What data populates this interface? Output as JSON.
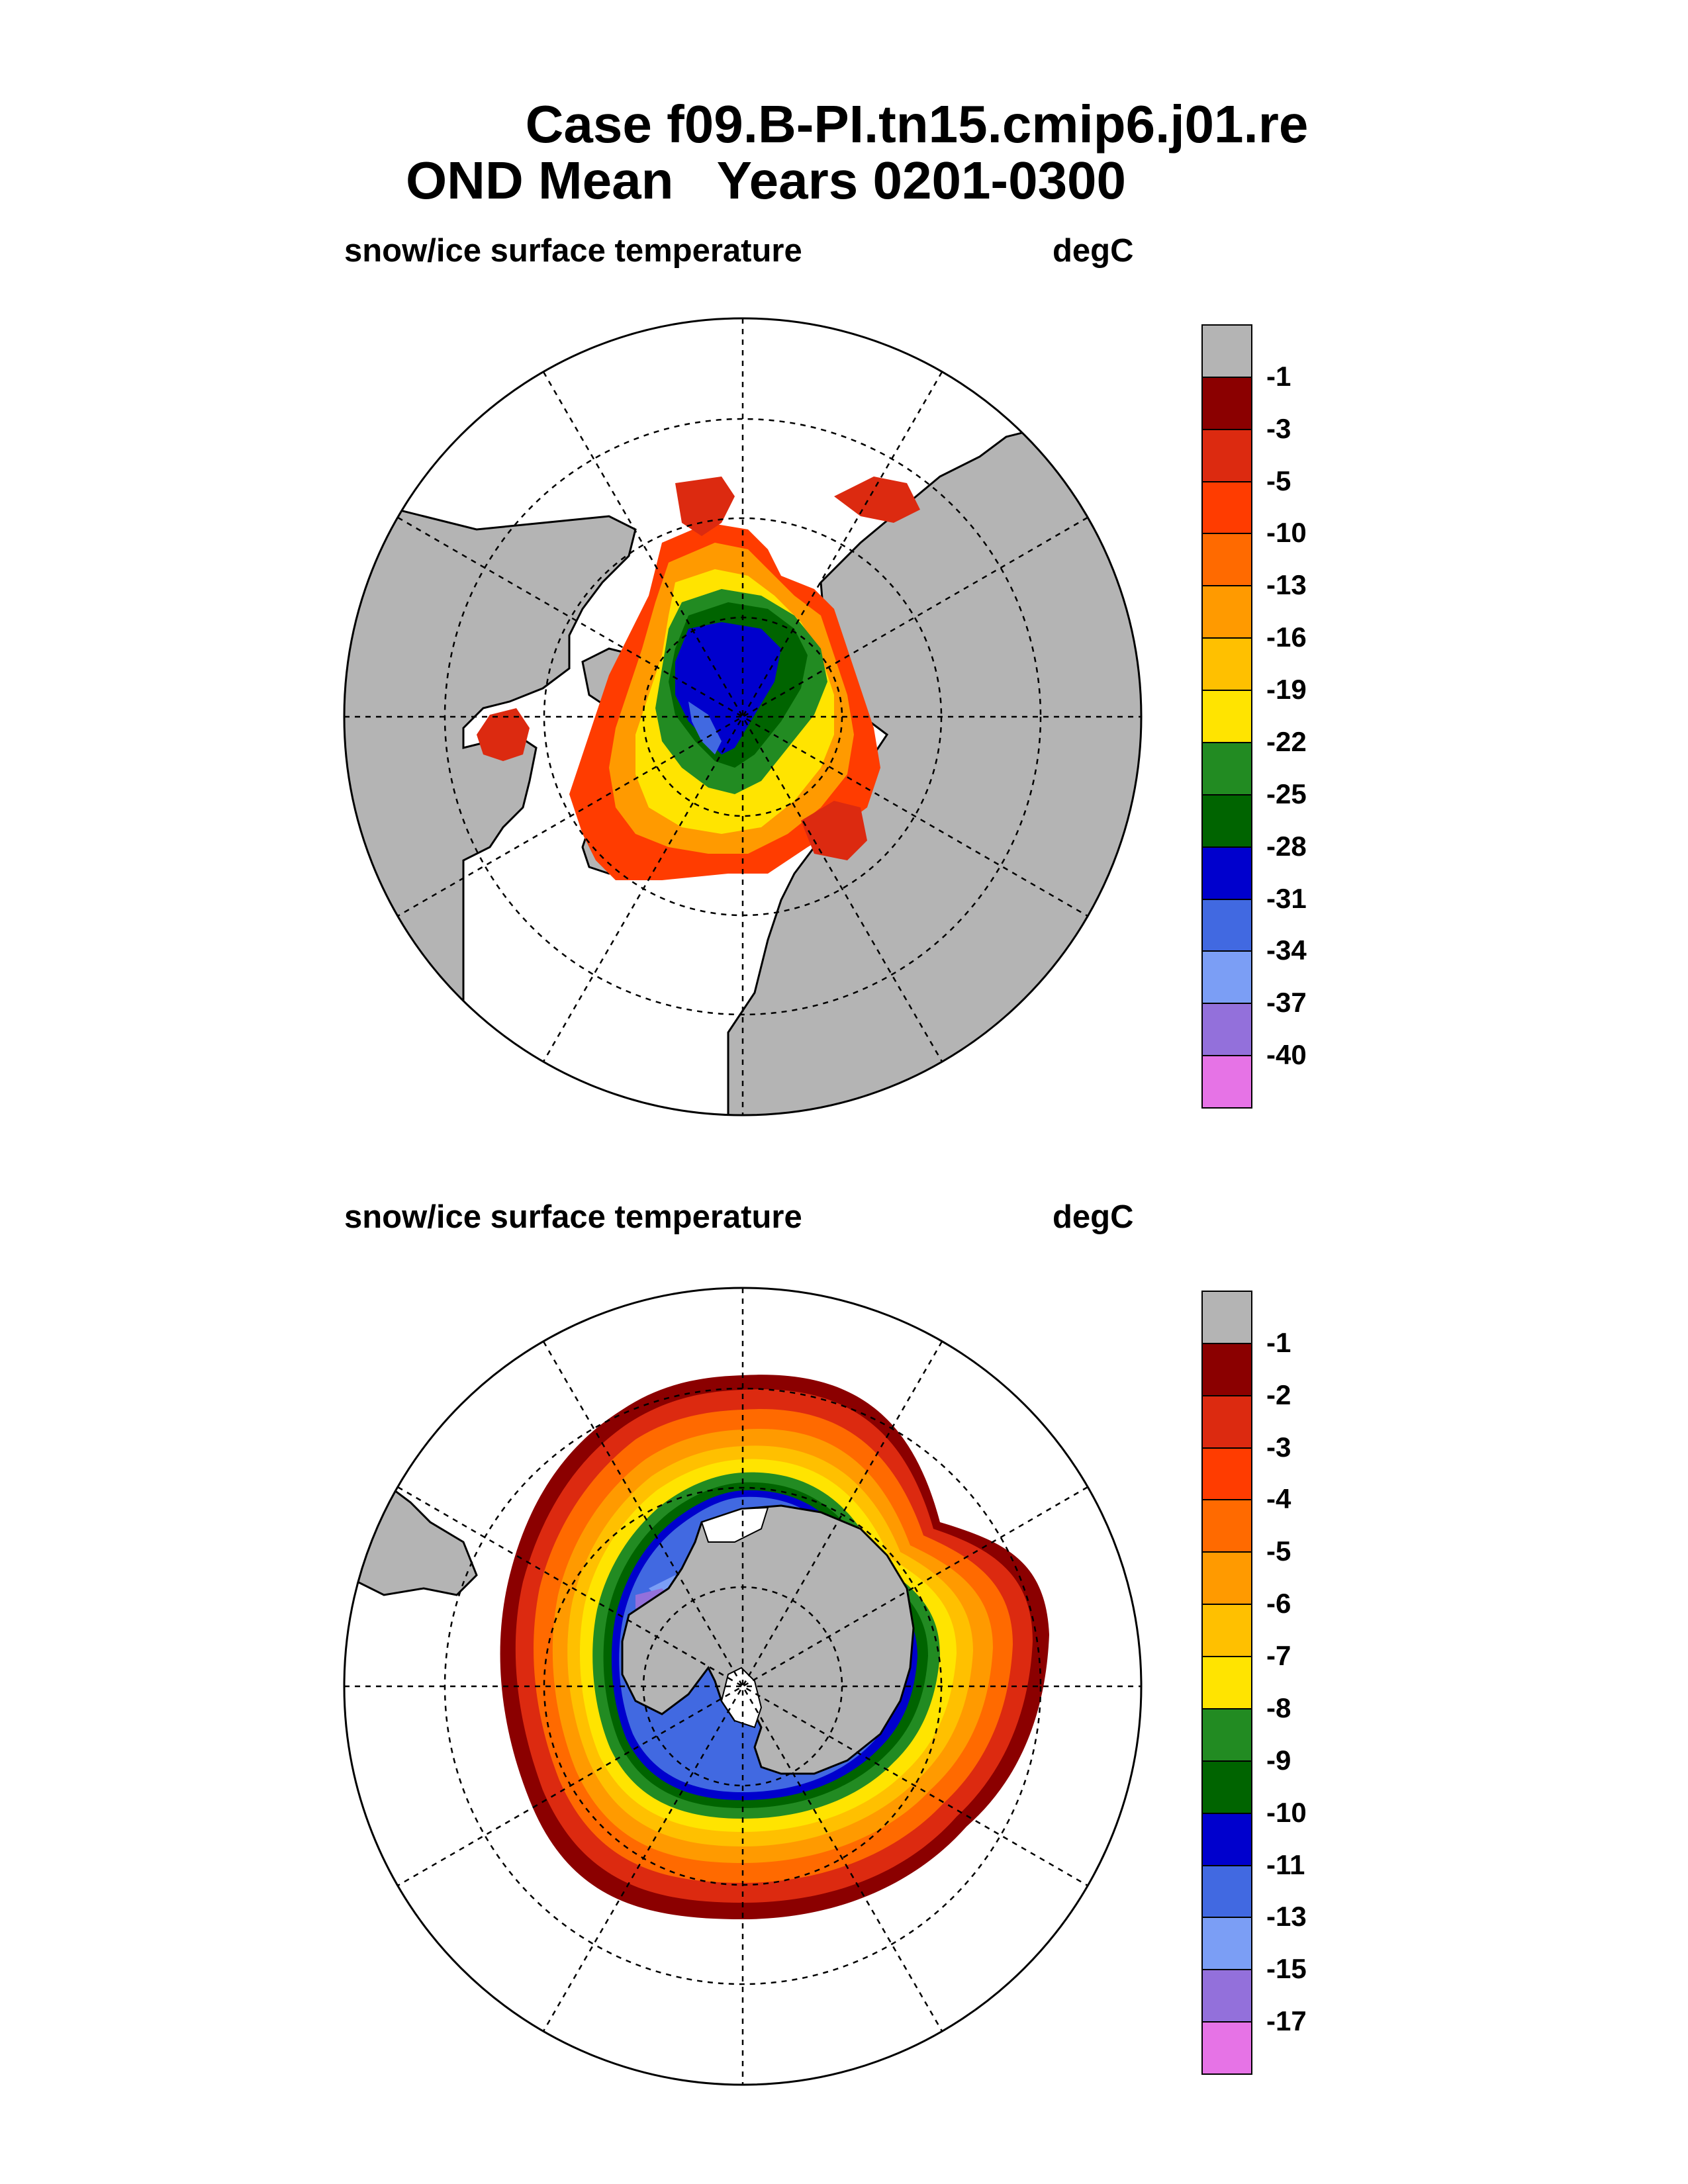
{
  "title": {
    "line1": "Case f09.B-PI.tn15.cmip6.j01.re",
    "line2": "OND Mean   Years 0201-0300"
  },
  "panels": [
    {
      "hemisphere": "north",
      "variable_label": "snow/ice surface temperature",
      "units_label": "degC",
      "colorbar": {
        "labels": [
          "-1",
          "-3",
          "-5",
          "-10",
          "-13",
          "-16",
          "-19",
          "-22",
          "-25",
          "-28",
          "-31",
          "-34",
          "-37",
          "-40"
        ],
        "colors": [
          "#b4b4b4",
          "#8b0000",
          "#dc2a10",
          "#ff3c00",
          "#ff6a00",
          "#ff9a00",
          "#ffc000",
          "#ffe400",
          "#228b22",
          "#006400",
          "#0000cd",
          "#4169e1",
          "#7b9ef5",
          "#9370db",
          "#e673e6"
        ]
      }
    },
    {
      "hemisphere": "south",
      "variable_label": "snow/ice surface temperature",
      "units_label": "degC",
      "colorbar": {
        "labels": [
          "-1",
          "-2",
          "-3",
          "-4",
          "-5",
          "-6",
          "-7",
          "-8",
          "-9",
          "-10",
          "-11",
          "-13",
          "-15",
          "-17"
        ],
        "colors": [
          "#b4b4b4",
          "#8b0000",
          "#dc2a10",
          "#ff3c00",
          "#ff6a00",
          "#ff9a00",
          "#ffc000",
          "#ffe400",
          "#228b22",
          "#006400",
          "#0000cd",
          "#4169e1",
          "#7b9ef5",
          "#9370db",
          "#e673e6"
        ]
      }
    }
  ]
}
